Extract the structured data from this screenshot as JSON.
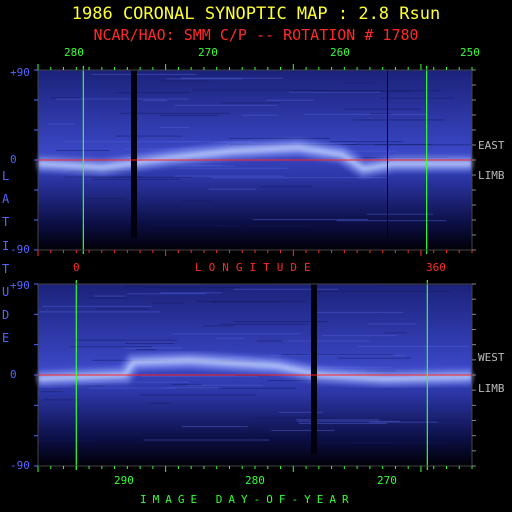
{
  "header": {
    "title": "1986 CORONAL SYNOPTIC MAP : 2.8 Rsun",
    "subtitle": "NCAR/HAO: SMM C/P -- ROTATION # 1780"
  },
  "chart_data": [
    {
      "type": "heatmap",
      "panel": "upper",
      "side_label": [
        "EAST",
        "LIMB"
      ],
      "top_axis": {
        "ticks": [
          280,
          270,
          260,
          250
        ],
        "range": [
          283.5,
          250
        ]
      },
      "bottom_axis": {
        "ticks": [
          0,
          360
        ],
        "label": "LONGITUDE"
      },
      "y_axis": {
        "range": [
          -90,
          90
        ],
        "ticks": [
          "+90",
          "0",
          "-90"
        ]
      },
      "green_lines": [
        280,
        253.5
      ],
      "red_line_latitude": 0
    },
    {
      "type": "heatmap",
      "panel": "lower",
      "side_label": [
        "WEST",
        "LIMB"
      ],
      "bottom_axis": {
        "ticks": [
          290,
          280,
          270
        ],
        "range": [
          297,
          263
        ],
        "label": "IMAGE DAY-OF-YEAR"
      },
      "y_axis": {
        "range": [
          -90,
          90
        ],
        "ticks": [
          "+90",
          "0",
          "-90"
        ]
      },
      "green_lines": [
        294,
        266.5
      ],
      "red_line_latitude": 0
    }
  ],
  "y_axis_label": "LATITUDE",
  "colors": {
    "title": "#ffff33",
    "subtitle": "#ff2a2a",
    "axis_green": "#33ff33",
    "axis_blue": "#5566ff",
    "band": "#ccddff"
  }
}
